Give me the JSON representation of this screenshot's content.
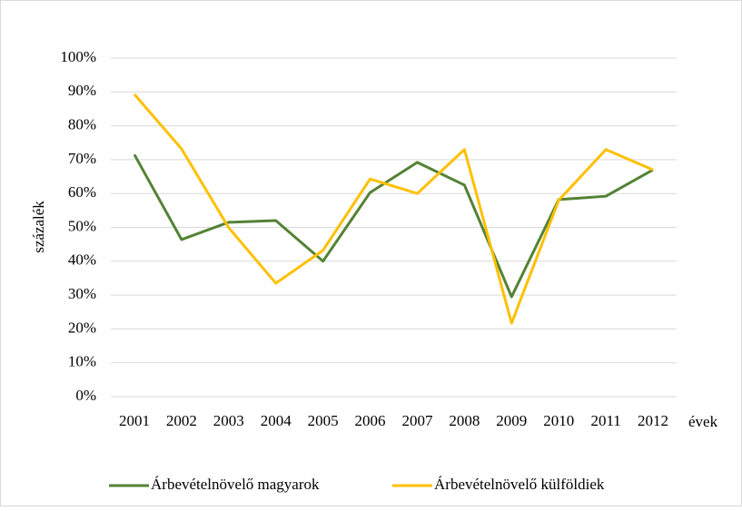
{
  "chart_data": {
    "type": "line",
    "x_label": "évek",
    "y_label": "százalék",
    "categories": [
      "2001",
      "2002",
      "2003",
      "2004",
      "2005",
      "2006",
      "2007",
      "2008",
      "2009",
      "2010",
      "2011",
      "2012"
    ],
    "series": [
      {
        "name": "Árbevételnövelő magyarok",
        "color": "#548235",
        "values": [
          71.5,
          46.4,
          51.5,
          52,
          40,
          60.3,
          69.2,
          62.5,
          29.5,
          58.2,
          59.2,
          67
        ]
      },
      {
        "name": "Árbevételnövelő külföldiek",
        "color": "#ffc000",
        "values": [
          89.3,
          73.2,
          49.9,
          33.5,
          43.2,
          64.3,
          60,
          73,
          21.7,
          58,
          73,
          67
        ]
      }
    ],
    "ylim": [
      0,
      100
    ],
    "yticks": [
      {
        "value": 0,
        "label": "0%"
      },
      {
        "value": 10,
        "label": "10%"
      },
      {
        "value": 20,
        "label": "20%"
      },
      {
        "value": 30,
        "label": "30%"
      },
      {
        "value": 40,
        "label": "40%"
      },
      {
        "value": 50,
        "label": "50%"
      },
      {
        "value": 60,
        "label": "60%"
      },
      {
        "value": 70,
        "label": "70%"
      },
      {
        "value": 80,
        "label": "80%"
      },
      {
        "value": 90,
        "label": "90%"
      },
      {
        "value": 100,
        "label": "100%"
      }
    ],
    "grid": true,
    "legend": "bottom"
  }
}
